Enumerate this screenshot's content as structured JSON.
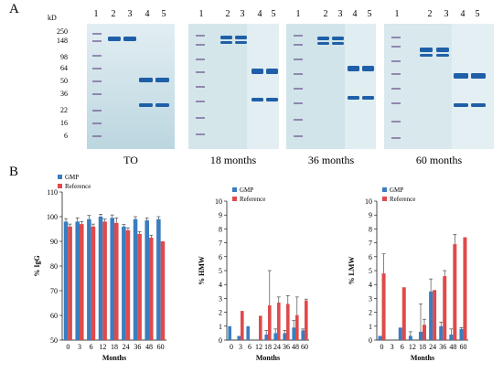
{
  "panel_a": {
    "letter": "A",
    "kd_unit": "kD",
    "markers": [
      "250",
      "148",
      "98",
      "64",
      "50",
      "36",
      "22",
      "16",
      "6"
    ],
    "gels": [
      {
        "lanes": [
          "1",
          "2",
          "3",
          "4",
          "5"
        ],
        "caption": "TO"
      },
      {
        "lanes": [
          "1",
          "2",
          "3",
          "4",
          "5"
        ],
        "caption": "18 months"
      },
      {
        "lanes": [
          "1",
          "2",
          "3",
          "4",
          "5"
        ],
        "caption": "36 months"
      },
      {
        "lanes": [
          "1",
          "2",
          "3",
          "4",
          "5"
        ],
        "caption": "60 months"
      }
    ],
    "colors": {
      "gel": "#cfe3ea",
      "band": "#1f5fa8",
      "ladder": "#6a4f8a"
    }
  },
  "panel_b": {
    "letter": "B",
    "colors": {
      "gmp": "#3a7dc0",
      "reference": "#e04a4a"
    }
  },
  "chart_data": [
    {
      "type": "bar",
      "categories": [
        "0",
        "3",
        "6",
        "12",
        "18",
        "24",
        "36",
        "48",
        "60"
      ],
      "series": [
        {
          "name": "GMP",
          "values": [
            98,
            98,
            99,
            100,
            99.5,
            96,
            99,
            98.5,
            99
          ],
          "errors": [
            1.2,
            1.5,
            1.5,
            1,
            1.2,
            0.8,
            1,
            1,
            1
          ]
        },
        {
          "name": "Reference",
          "values": [
            96,
            97,
            96,
            98,
            97.5,
            94.5,
            93,
            91.5,
            90
          ],
          "errors": [
            1,
            1,
            1,
            1,
            2,
            1,
            1,
            1,
            0
          ]
        }
      ],
      "xlabel": "Months",
      "ylabel": "% IgG",
      "ylim": [
        50,
        110
      ],
      "yticks": [
        "50",
        "60",
        "70",
        "80",
        "90",
        "100",
        "110"
      ],
      "legend": "top-left"
    },
    {
      "type": "bar",
      "categories": [
        "0",
        "3",
        "6",
        "12",
        "18",
        "24",
        "36",
        "48",
        "60"
      ],
      "series": [
        {
          "name": "GMP",
          "values": [
            1,
            0.3,
            1,
            0,
            0.4,
            0.5,
            0.5,
            0.9,
            0.7
          ],
          "errors": [
            0,
            0,
            0,
            0,
            0.3,
            0.3,
            0.2,
            0.5,
            0.1
          ]
        },
        {
          "name": "Reference",
          "values": [
            0,
            2.1,
            0,
            1.75,
            2.5,
            2.7,
            2.6,
            1.8,
            2.85
          ],
          "errors": [
            0,
            0,
            0,
            0,
            2.5,
            0.4,
            0.6,
            1.3,
            0.1
          ]
        }
      ],
      "xlabel": "Months",
      "ylabel": "% HMW",
      "ylim": [
        0,
        10
      ],
      "yticks": [
        "0",
        "1",
        "2",
        "3",
        "4",
        "5",
        "6",
        "7",
        "8",
        "9",
        "10"
      ],
      "legend": "top-left"
    },
    {
      "type": "bar",
      "categories": [
        "0",
        "3",
        "6",
        "12",
        "18",
        "24",
        "36",
        "48",
        "60"
      ],
      "series": [
        {
          "name": "GMP",
          "values": [
            0.3,
            0,
            0.9,
            0.3,
            0.6,
            3.5,
            1,
            0.4,
            0.8
          ],
          "errors": [
            0,
            0,
            0,
            0.3,
            2,
            0.9,
            0.3,
            0.4,
            0.1
          ]
        },
        {
          "name": "Reference",
          "values": [
            4.8,
            0,
            3.8,
            0,
            1.1,
            3.6,
            4.6,
            6.9,
            7.4
          ],
          "errors": [
            1.4,
            0,
            0,
            0,
            0.4,
            0,
            0.4,
            0.7,
            0
          ]
        }
      ],
      "xlabel": "Months",
      "ylabel": "% LMW",
      "ylim": [
        0,
        10
      ],
      "yticks": [
        "0",
        "1",
        "2",
        "3",
        "4",
        "5",
        "6",
        "7",
        "8",
        "9",
        "10"
      ],
      "legend": "top-left"
    }
  ]
}
